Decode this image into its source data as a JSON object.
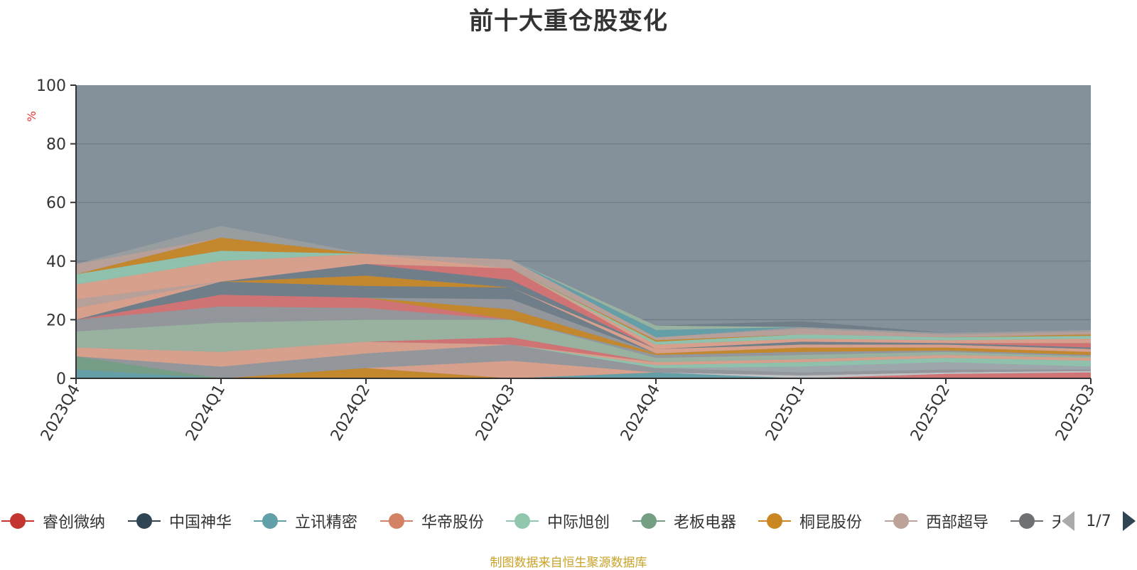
{
  "title": "前十大重仓股变化",
  "source_note": "制图数据来自恒生聚源数据库",
  "legend_page": "1/7",
  "colors": {
    "plot_background": "#84909a",
    "gridline": "#6c7a84",
    "axis": "#333333",
    "ylabel": "#e53935",
    "source": "#c9a227"
  },
  "legend": [
    {
      "name": "睿创微纳",
      "color": "#c23531"
    },
    {
      "name": "中国神华",
      "color": "#2f4554"
    },
    {
      "name": "立讯精密",
      "color": "#61a0a8"
    },
    {
      "name": "华帝股份",
      "color": "#d48265"
    },
    {
      "name": "中际旭创",
      "color": "#91c7ae"
    },
    {
      "name": "老板电器",
      "color": "#749f83"
    },
    {
      "name": "桐昆股份",
      "color": "#ca8622"
    },
    {
      "name": "西部超导",
      "color": "#bda29a"
    },
    {
      "name": "天",
      "color": "#6e7074"
    }
  ],
  "chart_data": {
    "type": "area",
    "stacked": true,
    "title": "前十大重仓股变化",
    "xlabel": "",
    "ylabel": "%",
    "ylim": [
      0,
      100
    ],
    "yticks": [
      0,
      20,
      40,
      60,
      80,
      100
    ],
    "categories": [
      "2023Q4",
      "2024Q1",
      "2024Q2",
      "2024Q3",
      "2024Q4",
      "2025Q1",
      "2025Q2",
      "2025Q3"
    ],
    "grid": true,
    "legend_position": "bottom",
    "series": [
      {
        "color": "#61a0a8",
        "values": [
          3.0,
          0,
          0,
          0,
          2.0,
          0,
          0,
          0
        ]
      },
      {
        "color": "#749f83",
        "values": [
          4.5,
          0,
          0,
          0,
          0,
          0,
          0,
          0
        ]
      },
      {
        "color": "#ca8622",
        "values": [
          0,
          0,
          3.5,
          0,
          0,
          0,
          0,
          0
        ]
      },
      {
        "color": "#e0a28c",
        "values": [
          0,
          0,
          0,
          6.0,
          0,
          0,
          0,
          0
        ]
      },
      {
        "color": "#d87070",
        "values": [
          0,
          0,
          0,
          0,
          0,
          0,
          1.5,
          2.0
        ]
      },
      {
        "color": "#c8c8c8",
        "values": [
          0,
          0,
          0,
          0,
          0,
          1.0,
          0.5,
          0.5
        ]
      },
      {
        "color": "#95989c",
        "values": [
          0,
          4.0,
          5.0,
          5.5,
          1.5,
          1.0,
          1.0,
          0.5
        ]
      },
      {
        "color": "#a0a8ac",
        "values": [
          0,
          0,
          0,
          0,
          0,
          2.0,
          2.5,
          1.0
        ]
      },
      {
        "color": "#91c7ae",
        "values": [
          0,
          0,
          0,
          0,
          1.0,
          1.5,
          1.5,
          2.0
        ]
      },
      {
        "color": "#e0a28c",
        "values": [
          3.0,
          5.0,
          4.0,
          0,
          1.0,
          1.0,
          1.0,
          1.0
        ]
      },
      {
        "color": "#d87070",
        "values": [
          0,
          0,
          0,
          2.5,
          0,
          0,
          0,
          0
        ]
      },
      {
        "color": "#9bb5a0",
        "values": [
          5.5,
          10.0,
          7.5,
          6.0,
          1.5,
          1.5,
          1.0,
          0.5
        ]
      },
      {
        "color": "#95989c",
        "values": [
          4.0,
          5.5,
          4.0,
          0,
          1.0,
          1.0,
          0.5,
          0.5
        ]
      },
      {
        "color": "#d87070",
        "values": [
          0,
          4.0,
          3.5,
          0,
          0,
          0,
          0,
          0
        ]
      },
      {
        "color": "#ca8622",
        "values": [
          0,
          0,
          0,
          3.5,
          0.5,
          1.5,
          1.0,
          1.0
        ]
      },
      {
        "color": "#95989c",
        "values": [
          0,
          0,
          0,
          3.5,
          0,
          0,
          0,
          0
        ]
      },
      {
        "color": "#6e7c88",
        "values": [
          0,
          4.5,
          4.0,
          4.0,
          0,
          0,
          0,
          0
        ]
      },
      {
        "color": "#ca8622",
        "values": [
          0,
          0,
          3.5,
          0,
          0,
          0,
          0,
          0
        ]
      },
      {
        "color": "#e0a28c",
        "values": [
          4.0,
          0,
          0,
          0,
          1.5,
          1.0,
          1.0,
          1.0
        ]
      },
      {
        "color": "#bda29a",
        "values": [
          3.0,
          0,
          0,
          0,
          0,
          0,
          0,
          0
        ]
      },
      {
        "color": "#6e7c88",
        "values": [
          0,
          0,
          4.0,
          2.5,
          0,
          1.0,
          0.5,
          0.5
        ]
      },
      {
        "color": "#d87070",
        "values": [
          0,
          0,
          0,
          4.0,
          0,
          0,
          0,
          1.5
        ]
      },
      {
        "color": "#e0a28c",
        "values": [
          5.0,
          7.0,
          3.5,
          0,
          1.5,
          1.0,
          1.0,
          1.5
        ]
      },
      {
        "color": "#91c7ae",
        "values": [
          3.5,
          3.5,
          0,
          0,
          1.0,
          1.5,
          1.0,
          1.0
        ]
      },
      {
        "color": "#ca8622",
        "values": [
          0,
          4.5,
          0,
          0,
          0.5,
          0,
          0,
          0.5
        ]
      },
      {
        "color": "#bda29a",
        "values": [
          3.5,
          0,
          0,
          3.0,
          1.0,
          2.0,
          1.0,
          1.0
        ]
      },
      {
        "color": "#9a9ea0",
        "values": [
          0,
          4.0,
          0,
          0,
          0,
          0.5,
          0.5,
          0.5
        ]
      },
      {
        "color": "#61a0a8",
        "values": [
          0,
          0,
          0,
          0,
          2.5,
          0,
          0,
          0
        ]
      },
      {
        "color": "#9bb5a0",
        "values": [
          0,
          0,
          0,
          0,
          1.5,
          0,
          0,
          0
        ]
      },
      {
        "color": "#6e7c88",
        "values": [
          0,
          0,
          0,
          0,
          0,
          2.0,
          0,
          0
        ]
      }
    ]
  }
}
